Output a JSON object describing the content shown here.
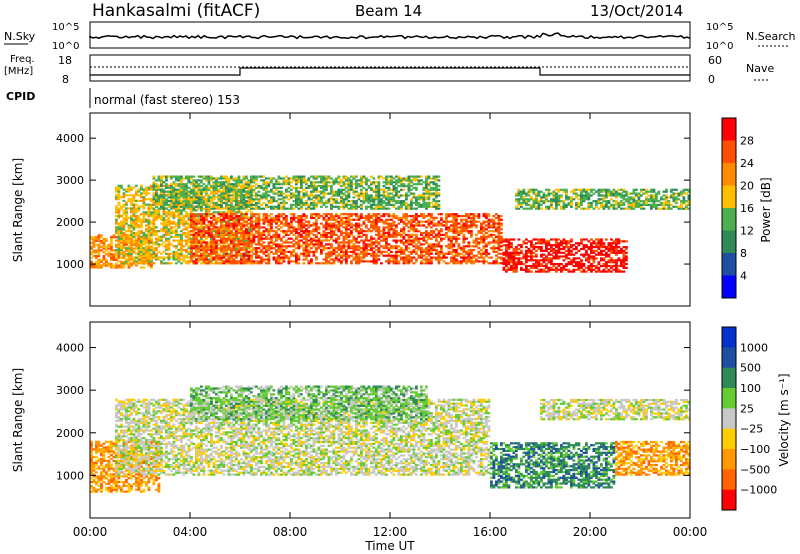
{
  "header": {
    "station": "Hankasalmi (fitACF)",
    "beam": "Beam 14",
    "date": "13/Oct/2014"
  },
  "noise_panel": {
    "left_label": "N.Sky",
    "right_label": "N.Search",
    "left_ticks": [
      "10^5",
      "10^0"
    ],
    "right_ticks": [
      "10^5",
      "10^0"
    ]
  },
  "freq_panel": {
    "left_label_line1": "Freq.",
    "left_label_line2": "[MHz]",
    "right_label": "Nave",
    "left_ticks": [
      "18",
      "8"
    ],
    "right_ticks": [
      "60",
      "0"
    ]
  },
  "cpid": {
    "label": "CPID",
    "text": "normal (fast stereo) 153"
  },
  "colors": {
    "power_scale": [
      "#0000ff",
      "#1f4fa0",
      "#2e8b57",
      "#4caf50",
      "#ffc000",
      "#ff8c00",
      "#ff5000",
      "#ff0000"
    ],
    "velocity_scale": [
      "#ff0000",
      "#ff6600",
      "#ff9900",
      "#ffcc00",
      "#c8c8c8",
      "#66cc33",
      "#2e8b57",
      "#1f4fa0",
      "#0033cc"
    ]
  },
  "chart_data": [
    {
      "type": "heatmap",
      "title": "",
      "xlabel": "",
      "ylabel": "Slant Range [km]",
      "xlim": [
        "00:00",
        "24:00"
      ],
      "ylim": [
        0,
        4600
      ],
      "y_ticks": [
        "1000",
        "2000",
        "3000",
        "4000"
      ],
      "colorbar": {
        "label": "Power [dB]",
        "ticks": [
          "4",
          "8",
          "12",
          "16",
          "20",
          "24",
          "28"
        ]
      },
      "bands": [
        {
          "name_hidden": "A",
          "t_start": 0.0,
          "t_end": 2.5,
          "r_low": 900,
          "r_high": 1700,
          "level": 5
        },
        {
          "name_hidden": "B",
          "t_start": 1.0,
          "t_end": 6.5,
          "r_low": 1000,
          "r_high": 2900,
          "level": 4
        },
        {
          "name_hidden": "C",
          "t_start": 4.0,
          "t_end": 16.5,
          "r_low": 1000,
          "r_high": 2200,
          "level": 6
        },
        {
          "name_hidden": "D",
          "t_start": 2.5,
          "t_end": 14.0,
          "r_low": 2300,
          "r_high": 3100,
          "level": 3
        },
        {
          "name_hidden": "E",
          "t_start": 16.5,
          "t_end": 21.5,
          "r_low": 800,
          "r_high": 1600,
          "level": 7
        },
        {
          "name_hidden": "F",
          "t_start": 17.0,
          "t_end": 24.0,
          "r_low": 2300,
          "r_high": 2800,
          "level": 3
        }
      ]
    },
    {
      "type": "heatmap",
      "title": "",
      "xlabel": "Time UT",
      "ylabel": "Slant Range [km]",
      "xlim": [
        "00:00",
        "24:00"
      ],
      "ylim": [
        0,
        4600
      ],
      "y_ticks": [
        "1000",
        "2000",
        "3000",
        "4000"
      ],
      "x_ticks": [
        "00:00",
        "04:00",
        "08:00",
        "12:00",
        "16:00",
        "20:00",
        "00:00"
      ],
      "colorbar": {
        "label": "Velocity [m s⁻¹]",
        "ticks": [
          "1000",
          "500",
          "100",
          "25",
          "−25",
          "−100",
          "−500",
          "−1000"
        ]
      },
      "bands": [
        {
          "t_start": 0.0,
          "t_end": 2.8,
          "r_low": 600,
          "r_high": 1800,
          "level": 2
        },
        {
          "t_start": 1.0,
          "t_end": 16.0,
          "r_low": 1000,
          "r_high": 2800,
          "level": 4
        },
        {
          "t_start": 16.0,
          "t_end": 21.0,
          "r_low": 700,
          "r_high": 1800,
          "level": 6
        },
        {
          "t_start": 4.0,
          "t_end": 13.5,
          "r_low": 2300,
          "r_high": 3100,
          "level": 5
        },
        {
          "t_start": 21.0,
          "t_end": 24.0,
          "r_low": 1000,
          "r_high": 1800,
          "level": 2
        },
        {
          "t_start": 18.0,
          "t_end": 24.0,
          "r_low": 2300,
          "r_high": 2800,
          "level": 4
        }
      ]
    }
  ]
}
